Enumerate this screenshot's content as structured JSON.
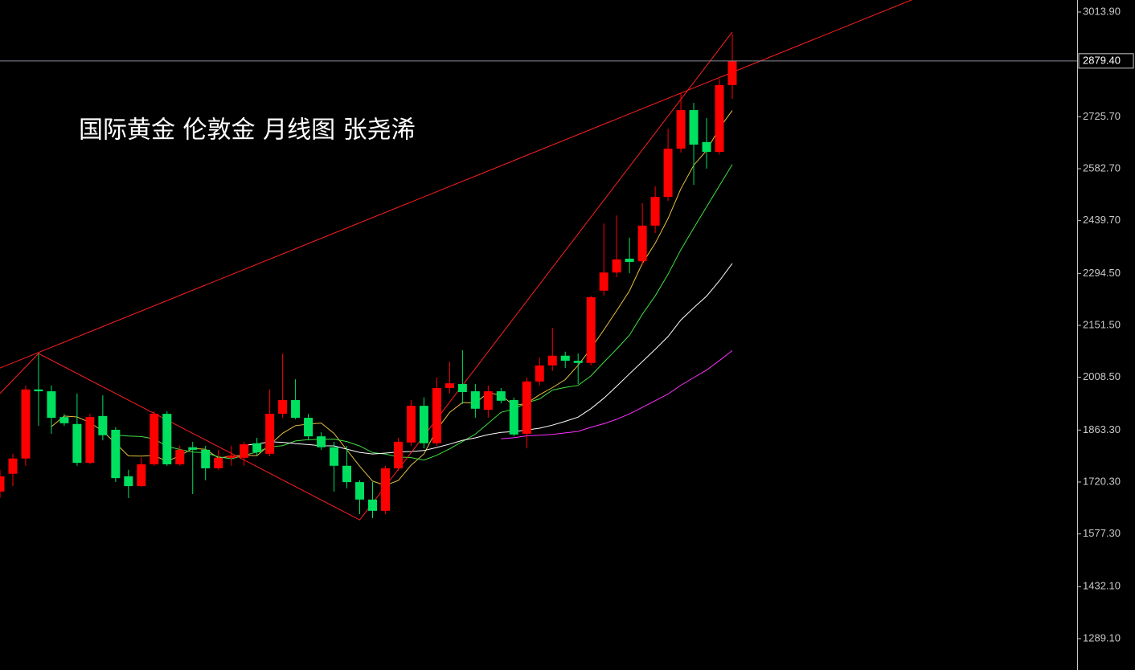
{
  "chart_data": {
    "type": "candlestick",
    "title": "国际黄金 伦敦金 月线图 张尧浠",
    "ylim": [
      1202.8,
      3047.1
    ],
    "yticks": [
      {
        "value": 3013.9,
        "label": "3013.90"
      },
      {
        "value": 2725.7,
        "label": "2725.70"
      },
      {
        "value": 2582.7,
        "label": "2582.70"
      },
      {
        "value": 2439.7,
        "label": "2439.70"
      },
      {
        "value": 2294.5,
        "label": "2294.50"
      },
      {
        "value": 2151.5,
        "label": "2151.50"
      },
      {
        "value": 2008.5,
        "label": "2008.50"
      },
      {
        "value": 1863.3,
        "label": "1863.30"
      },
      {
        "value": 1720.3,
        "label": "1720.30"
      },
      {
        "value": 1577.3,
        "label": "1577.30"
      },
      {
        "value": 1432.1,
        "label": "1432.10"
      },
      {
        "value": 1289.1,
        "label": "1289.10"
      }
    ],
    "last_price": {
      "value": 2879.4,
      "label": "2879.40"
    },
    "up_color": "#ff0000",
    "down_color": "#00e060",
    "open": [
      1694,
      1743,
      1785,
      1975,
      1970,
      1899,
      1880,
      1773,
      1902,
      1864,
      1736,
      1709,
      1769,
      1908,
      1769,
      1816,
      1809,
      1758,
      1787,
      1787,
      1827,
      1798,
      1908,
      1946,
      1897,
      1846,
      1816,
      1765,
      1720,
      1672,
      1641,
      1758,
      1829,
      1930,
      1827,
      1979,
      1990,
      1970,
      1919,
      1970,
      1946,
      1853,
      1997,
      2041,
      2068,
      2054,
      2048,
      2247,
      2297,
      2335,
      2328,
      2426,
      2505,
      2638,
      2744,
      2656,
      2629,
      2813
    ],
    "high": [
      1754,
      1798,
      1986,
      2074,
      1986,
      1908,
      1964,
      1908,
      1959,
      1871,
      1754,
      1787,
      1915,
      1915,
      1820,
      1831,
      1820,
      1809,
      1820,
      1831,
      1842,
      1975,
      2074,
      2003,
      1908,
      1857,
      1831,
      1820,
      1725,
      1720,
      1765,
      1842,
      1946,
      1953,
      2008,
      2052,
      2083,
      1990,
      1986,
      1979,
      1953,
      2008,
      2063,
      2145,
      2079,
      2074,
      2233,
      2432,
      2454,
      2393,
      2488,
      2534,
      2693,
      2793,
      2764,
      2722,
      2830,
      2954
    ],
    "low": [
      1676,
      1709,
      1765,
      1875,
      1853,
      1875,
      1765,
      1769,
      1835,
      1720,
      1676,
      1707,
      1765,
      1765,
      1765,
      1687,
      1725,
      1754,
      1765,
      1765,
      1793,
      1791,
      1897,
      1893,
      1835,
      1809,
      1694,
      1703,
      1632,
      1621,
      1632,
      1751,
      1820,
      1813,
      1820,
      1964,
      1935,
      1897,
      1897,
      1937,
      1846,
      1813,
      1986,
      2026,
      2034,
      1990,
      2041,
      2233,
      2284,
      2295,
      2317,
      2406,
      2494,
      2627,
      2538,
      2583,
      2622,
      2775
    ],
    "close": [
      1736,
      1785,
      1975,
      1970,
      1897,
      1882,
      1773,
      1899,
      1849,
      1731,
      1709,
      1769,
      1908,
      1769,
      1809,
      1809,
      1758,
      1787,
      1793,
      1824,
      1802,
      1908,
      1946,
      1897,
      1846,
      1816,
      1765,
      1720,
      1672,
      1641,
      1758,
      1831,
      1930,
      1827,
      1979,
      1992,
      1968,
      1922,
      1970,
      1944,
      1851,
      1997,
      2041,
      2068,
      2054,
      2048,
      2229,
      2297,
      2333,
      2326,
      2426,
      2505,
      2638,
      2744,
      2649,
      2629,
      2813,
      2879.4
    ],
    "moving_averages": [
      {
        "period": 5,
        "color": "#e8c040"
      },
      {
        "period": 10,
        "color": "#40e040"
      },
      {
        "period": 20,
        "color": "#ffffff"
      },
      {
        "period": 40,
        "color": "#ff30ff"
      }
    ],
    "trendlines": [
      {
        "color": "#ff2020",
        "points": [
          [
            0,
            2034
          ],
          [
            57,
            2848
          ]
        ],
        "extend": true
      },
      {
        "color": "#ff2020",
        "points": [
          [
            0,
            1964
          ],
          [
            3,
            2074
          ],
          [
            28,
            1616
          ],
          [
            57,
            2959
          ]
        ],
        "extend": false
      }
    ]
  }
}
